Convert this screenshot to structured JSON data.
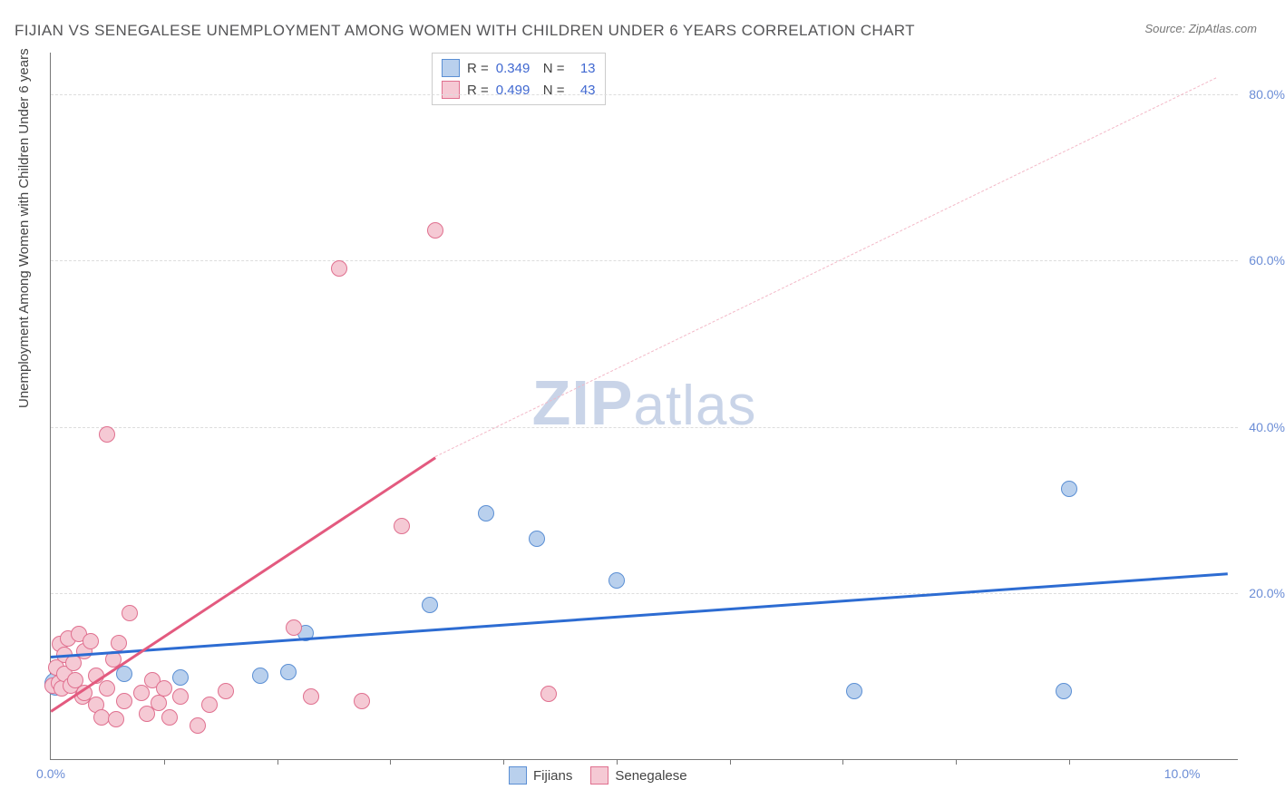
{
  "title": "FIJIAN VS SENEGALESE UNEMPLOYMENT AMONG WOMEN WITH CHILDREN UNDER 6 YEARS CORRELATION CHART",
  "source": "Source: ZipAtlas.com",
  "y_axis_label": "Unemployment Among Women with Children Under 6 years",
  "watermark_bold": "ZIP",
  "watermark_rest": "atlas",
  "chart": {
    "type": "scatter",
    "background_color": "#ffffff",
    "grid_color": "#dddddd",
    "axis_color": "#777777",
    "tick_label_color": "#6b8dd6",
    "xlim": [
      0,
      10.5
    ],
    "ylim": [
      0,
      85
    ],
    "x_ticks": [
      {
        "pos": 0.0,
        "label": "0.0%"
      },
      {
        "pos": 10.0,
        "label": "10.0%"
      }
    ],
    "x_minor_ticks": [
      1.0,
      2.0,
      3.0,
      4.0,
      5.0,
      6.0,
      7.0,
      8.0,
      9.0
    ],
    "y_ticks": [
      {
        "pos": 20.0,
        "label": "20.0%"
      },
      {
        "pos": 40.0,
        "label": "40.0%"
      },
      {
        "pos": 60.0,
        "label": "60.0%"
      },
      {
        "pos": 80.0,
        "label": "80.0%"
      }
    ],
    "series": [
      {
        "name": "Fijians",
        "fill_color": "#b9d0ed",
        "stroke_color": "#5b8fd4",
        "marker_radius": 9,
        "trend": {
          "x0": 0.0,
          "y0": 12.5,
          "x1": 10.4,
          "y1": 22.5,
          "color": "#2d6cd2",
          "width": 2.5,
          "dashed": false
        },
        "points": [
          {
            "x": 0.05,
            "y": 9.0,
            "r": 13
          },
          {
            "x": 0.65,
            "y": 10.2
          },
          {
            "x": 1.15,
            "y": 9.8
          },
          {
            "x": 1.85,
            "y": 10.0
          },
          {
            "x": 2.1,
            "y": 10.5
          },
          {
            "x": 2.25,
            "y": 15.2
          },
          {
            "x": 3.35,
            "y": 18.5
          },
          {
            "x": 3.85,
            "y": 29.5
          },
          {
            "x": 4.3,
            "y": 26.5
          },
          {
            "x": 5.0,
            "y": 21.5
          },
          {
            "x": 7.1,
            "y": 8.2
          },
          {
            "x": 8.95,
            "y": 8.2
          },
          {
            "x": 9.0,
            "y": 32.5
          }
        ]
      },
      {
        "name": "Senegalese",
        "fill_color": "#f5c9d4",
        "stroke_color": "#e0708f",
        "marker_radius": 9,
        "trend": {
          "x0": 0.0,
          "y0": 6.0,
          "x1": 3.4,
          "y1": 36.5,
          "color": "#e35a7f",
          "width": 2.5,
          "dashed": false
        },
        "trend_dash": {
          "x0": 3.4,
          "y0": 36.5,
          "x1": 10.3,
          "y1": 82.0,
          "color": "#f3b8c7",
          "width": 1.5
        },
        "points": [
          {
            "x": 0.02,
            "y": 8.8
          },
          {
            "x": 0.05,
            "y": 11.0
          },
          {
            "x": 0.07,
            "y": 9.2
          },
          {
            "x": 0.08,
            "y": 13.8
          },
          {
            "x": 0.1,
            "y": 8.5
          },
          {
            "x": 0.12,
            "y": 10.2
          },
          {
            "x": 0.12,
            "y": 12.5
          },
          {
            "x": 0.15,
            "y": 14.5
          },
          {
            "x": 0.18,
            "y": 8.8
          },
          {
            "x": 0.2,
            "y": 11.5
          },
          {
            "x": 0.22,
            "y": 9.5
          },
          {
            "x": 0.25,
            "y": 15.0
          },
          {
            "x": 0.28,
            "y": 7.5
          },
          {
            "x": 0.3,
            "y": 13.0
          },
          {
            "x": 0.3,
            "y": 8.0
          },
          {
            "x": 0.35,
            "y": 14.2
          },
          {
            "x": 0.4,
            "y": 6.5
          },
          {
            "x": 0.4,
            "y": 10.0
          },
          {
            "x": 0.45,
            "y": 5.0
          },
          {
            "x": 0.5,
            "y": 8.5
          },
          {
            "x": 0.5,
            "y": 39.0
          },
          {
            "x": 0.55,
            "y": 12.0
          },
          {
            "x": 0.58,
            "y": 4.8
          },
          {
            "x": 0.6,
            "y": 14.0
          },
          {
            "x": 0.65,
            "y": 7.0
          },
          {
            "x": 0.7,
            "y": 17.5
          },
          {
            "x": 0.8,
            "y": 8.0
          },
          {
            "x": 0.85,
            "y": 5.5
          },
          {
            "x": 0.9,
            "y": 9.5
          },
          {
            "x": 0.95,
            "y": 6.8
          },
          {
            "x": 1.0,
            "y": 8.5
          },
          {
            "x": 1.05,
            "y": 5.0
          },
          {
            "x": 1.15,
            "y": 7.5
          },
          {
            "x": 1.3,
            "y": 4.0
          },
          {
            "x": 1.4,
            "y": 6.5
          },
          {
            "x": 1.55,
            "y": 8.2
          },
          {
            "x": 2.15,
            "y": 15.8
          },
          {
            "x": 2.3,
            "y": 7.5
          },
          {
            "x": 2.55,
            "y": 59.0
          },
          {
            "x": 2.75,
            "y": 7.0
          },
          {
            "x": 3.1,
            "y": 28.0
          },
          {
            "x": 3.4,
            "y": 63.5
          },
          {
            "x": 4.4,
            "y": 7.8
          }
        ]
      }
    ],
    "legend_top": [
      {
        "swatch_fill": "#b9d0ed",
        "swatch_stroke": "#5b8fd4",
        "r_label": "R =",
        "r_value": "0.349",
        "n_label": "N =",
        "n_value": "13"
      },
      {
        "swatch_fill": "#f5c9d4",
        "swatch_stroke": "#e0708f",
        "r_label": "R =",
        "r_value": "0.499",
        "n_label": "N =",
        "n_value": "43"
      }
    ],
    "legend_bottom": [
      {
        "swatch_fill": "#b9d0ed",
        "swatch_stroke": "#5b8fd4",
        "label": "Fijians"
      },
      {
        "swatch_fill": "#f5c9d4",
        "swatch_stroke": "#e0708f",
        "label": "Senegalese"
      }
    ]
  }
}
